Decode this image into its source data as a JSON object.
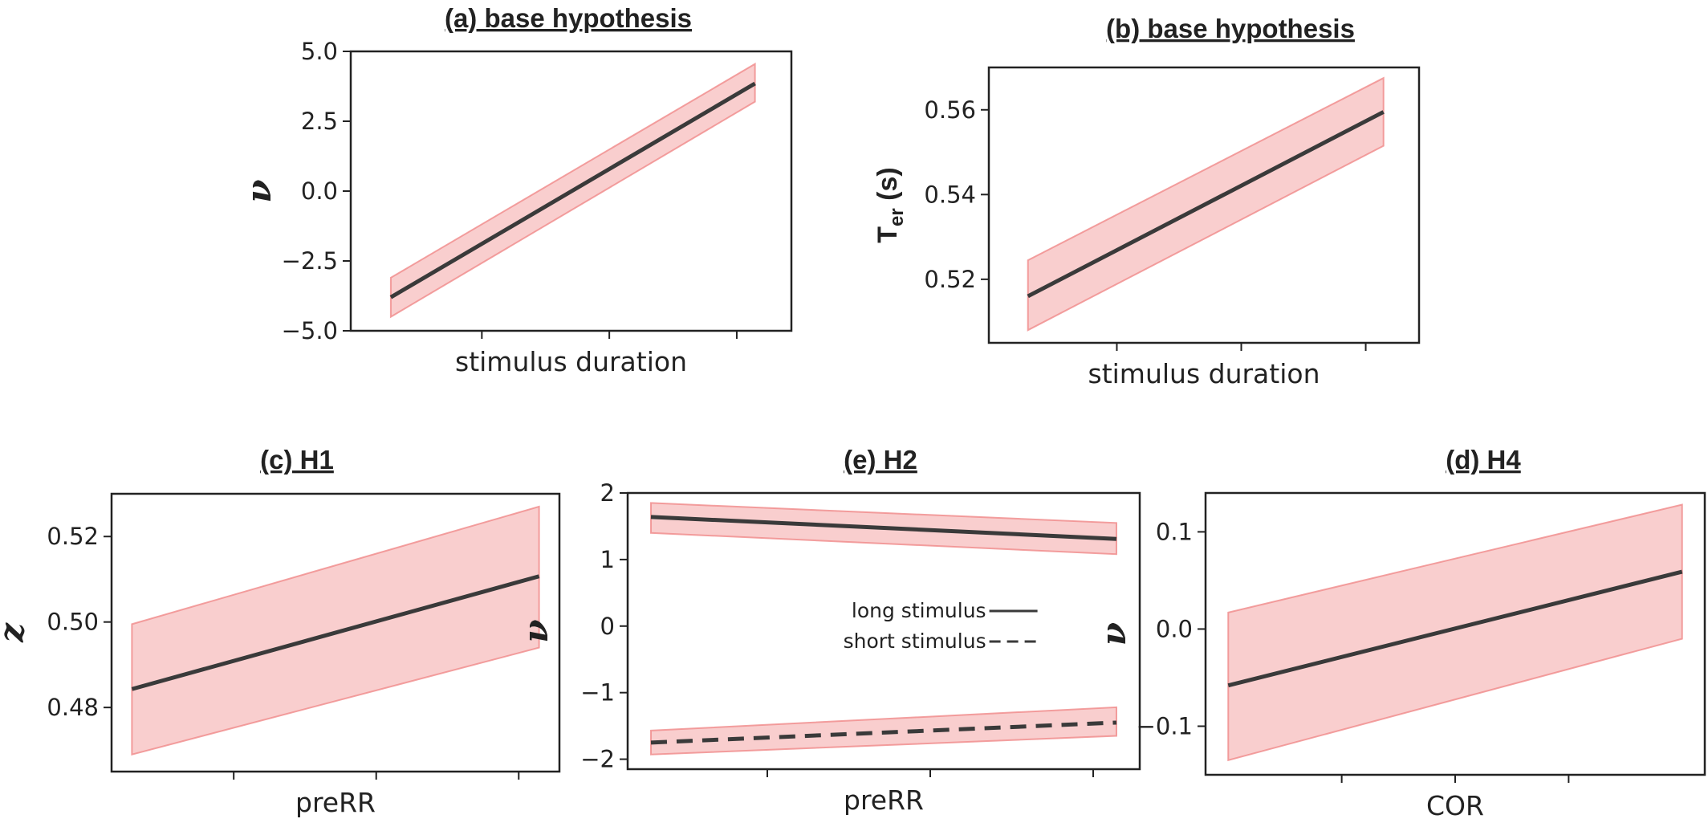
{
  "figure": {
    "background": "#ffffff",
    "band_color": "#f4a6a6",
    "band_edge_color": "#f08a8a",
    "line_color": "#3a3a3a"
  },
  "chart_data": [
    {
      "id": "a",
      "type": "line",
      "title": "(a) base hypothesis",
      "xlabel": "stimulus duration",
      "ylabel": "ν",
      "ylim": [
        -5.0,
        5.0
      ],
      "yticks": [
        -5.0,
        -2.5,
        0.0,
        2.5,
        5.0
      ],
      "ytick_labels": [
        "−5.0",
        "−2.5",
        "0.0",
        "2.5",
        "5.0"
      ],
      "xlim": [
        -0.11,
        1.1
      ],
      "xticks": [
        0.25,
        0.6,
        0.95
      ],
      "grid": false,
      "series": [
        {
          "x": [
            0,
            1
          ],
          "mean": [
            -3.8,
            3.85
          ],
          "lower": [
            -4.5,
            3.2
          ],
          "upper": [
            -3.1,
            4.55
          ],
          "style": "solid"
        }
      ]
    },
    {
      "id": "b",
      "type": "line",
      "title": "(b) base hypothesis",
      "xlabel": "stimulus duration",
      "ylabel": "T",
      "ylabel_sub": "er",
      "ylabel_unit": " (s)",
      "ylim": [
        0.505,
        0.57
      ],
      "yticks": [
        0.52,
        0.54,
        0.56
      ],
      "ytick_labels": [
        "0.52",
        "0.54",
        "0.56"
      ],
      "xlim": [
        -0.11,
        1.1
      ],
      "xticks": [
        0.25,
        0.6,
        0.95
      ],
      "grid": false,
      "series": [
        {
          "x": [
            0,
            1
          ],
          "mean": [
            0.516,
            0.5595
          ],
          "lower": [
            0.508,
            0.5515
          ],
          "upper": [
            0.5245,
            0.5675
          ],
          "style": "solid"
        }
      ]
    },
    {
      "id": "c",
      "type": "line",
      "title": "(c) H1",
      "xlabel": "preRR",
      "ylabel": "z",
      "ylim": [
        0.465,
        0.53
      ],
      "yticks": [
        0.48,
        0.5,
        0.52
      ],
      "ytick_labels": [
        "0.48",
        "0.50",
        "0.52"
      ],
      "xlim": [
        -0.05,
        1.05
      ],
      "xticks": [
        0.25,
        0.6,
        0.95
      ],
      "grid": false,
      "series": [
        {
          "x": [
            0,
            1
          ],
          "mean": [
            0.4843,
            0.5107
          ],
          "lower": [
            0.469,
            0.494
          ],
          "upper": [
            0.4995,
            0.527
          ],
          "style": "solid"
        }
      ]
    },
    {
      "id": "e",
      "type": "line",
      "title": "(e) H2",
      "xlabel": "preRR",
      "ylabel": "ν",
      "ylim": [
        -2.15,
        2.0
      ],
      "yticks": [
        -2,
        -1,
        0,
        1,
        2
      ],
      "ytick_labels": [
        "−2",
        "−1",
        "0",
        "1",
        "2"
      ],
      "xlim": [
        -0.05,
        1.05
      ],
      "xticks": [
        0.25,
        0.6,
        0.95
      ],
      "grid": false,
      "legend_position": "center",
      "series": [
        {
          "name": "long stimulus",
          "x": [
            0,
            1
          ],
          "mean": [
            1.64,
            1.31
          ],
          "lower": [
            1.4,
            1.08
          ],
          "upper": [
            1.85,
            1.55
          ],
          "style": "solid"
        },
        {
          "name": "short stimulus",
          "x": [
            0,
            1
          ],
          "mean": [
            -1.75,
            -1.45
          ],
          "lower": [
            -1.93,
            -1.65
          ],
          "upper": [
            -1.57,
            -1.22
          ],
          "style": "dashed"
        }
      ]
    },
    {
      "id": "d",
      "type": "line",
      "title": "(d) H4",
      "xlabel": "COR",
      "ylabel": "ν",
      "ylim": [
        -0.15,
        0.14
      ],
      "yticks": [
        -0.1,
        0.0,
        0.1
      ],
      "ytick_labels": [
        "−0.1",
        "0.0",
        "0.1"
      ],
      "xlim": [
        -0.05,
        1.05
      ],
      "xticks": [
        0.25,
        0.5,
        0.75
      ],
      "grid": false,
      "series": [
        {
          "x": [
            0,
            1
          ],
          "mean": [
            -0.058,
            0.059
          ],
          "lower": [
            -0.135,
            -0.01
          ],
          "upper": [
            0.017,
            0.128
          ],
          "style": "solid"
        }
      ]
    }
  ]
}
